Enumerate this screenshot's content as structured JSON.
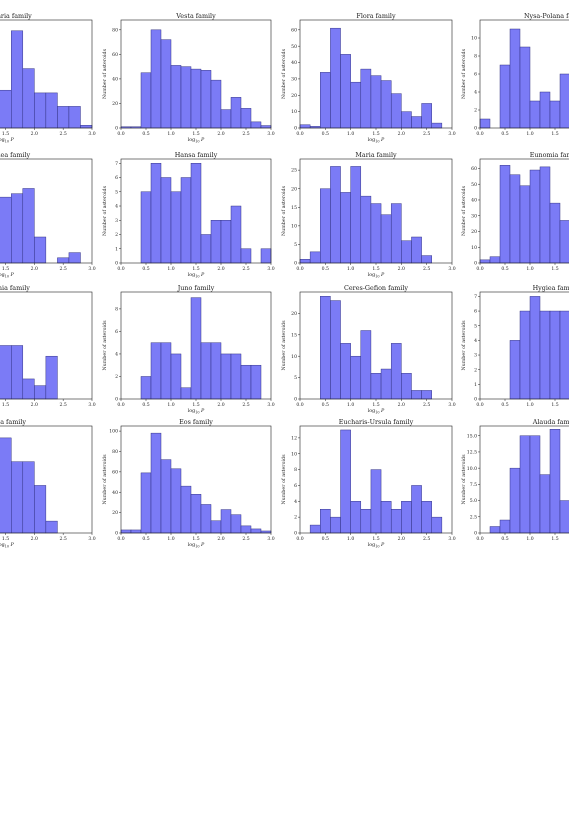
{
  "chart_data": [
    {
      "type": "bar",
      "title": "Hungaria family",
      "xlabel": "log10 P",
      "ylabel": "",
      "bin_edges": [
        0.0,
        0.2,
        0.4,
        0.6,
        0.8,
        1.0,
        1.2,
        1.4,
        1.6,
        1.8,
        2.0,
        2.2,
        2.4,
        2.6,
        2.8,
        3.0
      ],
      "values": [
        0,
        0,
        0,
        0,
        0,
        0,
        12,
        14,
        36,
        22,
        13,
        13,
        8,
        8,
        1
      ],
      "xlim": [
        0,
        3
      ],
      "ylim": [
        0,
        40
      ],
      "xticks": [
        "1.5",
        "2.0",
        "2.5",
        "3.0"
      ],
      "yticks": []
    },
    {
      "type": "bar",
      "title": "Vesta family",
      "xlabel": "log10 P",
      "ylabel": "Number of asteroids",
      "bin_edges": [
        0.0,
        0.2,
        0.4,
        0.6,
        0.8,
        1.0,
        1.2,
        1.4,
        1.6,
        1.8,
        2.0,
        2.2,
        2.4,
        2.6,
        2.8,
        3.0
      ],
      "values": [
        1,
        1,
        45,
        80,
        72,
        51,
        50,
        48,
        47,
        39,
        15,
        25,
        16,
        5,
        2
      ],
      "xlim": [
        0,
        3
      ],
      "ylim": [
        0,
        88
      ],
      "xticks": [
        "0.0",
        "0.5",
        "1.0",
        "1.5",
        "2.0",
        "2.5",
        "3.0"
      ],
      "yticks": [
        "0",
        "20",
        "40",
        "60",
        "80"
      ]
    },
    {
      "type": "bar",
      "title": "Flora family",
      "xlabel": "log10 P",
      "ylabel": "Number of asteroids",
      "bin_edges": [
        0.0,
        0.2,
        0.4,
        0.6,
        0.8,
        1.0,
        1.2,
        1.4,
        1.6,
        1.8,
        2.0,
        2.2,
        2.4,
        2.6,
        2.8,
        3.0
      ],
      "values": [
        2,
        1,
        34,
        61,
        45,
        28,
        36,
        32,
        29,
        21,
        10,
        7,
        15,
        3,
        0
      ],
      "xlim": [
        0,
        3
      ],
      "ylim": [
        0,
        66
      ],
      "xticks": [
        "0.0",
        "0.5",
        "1.0",
        "1.5",
        "2.0",
        "2.5",
        "3.0"
      ],
      "yticks": [
        "0",
        "10",
        "20",
        "30",
        "40",
        "50",
        "60"
      ]
    },
    {
      "type": "bar",
      "title": "Nysa-Polana family",
      "xlabel": "",
      "ylabel": "Number of asteroids",
      "bin_edges": [
        0.0,
        0.2,
        0.4,
        0.6,
        0.8,
        1.0,
        1.2,
        1.4,
        1.6,
        1.8,
        2.0,
        2.2,
        2.4,
        2.6,
        2.8,
        3.0
      ],
      "values": [
        1,
        0,
        7,
        11,
        9,
        3,
        4,
        3,
        6,
        0,
        0,
        0,
        0,
        0,
        0
      ],
      "xlim": [
        0,
        3
      ],
      "ylim": [
        0,
        12
      ],
      "xticks": [
        "0.0",
        "0.5",
        "1.0",
        "1.5"
      ],
      "yticks": [
        "0",
        "2",
        "4",
        "6",
        "8",
        "10"
      ]
    },
    {
      "type": "bar",
      "title": "Phocaea family",
      "xlabel": "log10 P",
      "ylabel": "",
      "bin_edges": [
        0.0,
        0.2,
        0.4,
        0.6,
        0.8,
        1.0,
        1.2,
        1.4,
        1.6,
        1.8,
        2.0,
        2.2,
        2.4,
        2.6,
        2.8,
        3.0
      ],
      "values": [
        0,
        0,
        0,
        0,
        0,
        3,
        4,
        3.8,
        4,
        4.3,
        1.5,
        0,
        0.3,
        0.6,
        0
      ],
      "xlim": [
        0,
        3
      ],
      "ylim": [
        0,
        6
      ],
      "xticks": [
        "1.5",
        "2.0",
        "2.5",
        "3.0"
      ],
      "yticks": []
    },
    {
      "type": "bar",
      "title": "Hansa family",
      "xlabel": "log10 P",
      "ylabel": "Number of asteroids",
      "bin_edges": [
        0.0,
        0.2,
        0.4,
        0.6,
        0.8,
        1.0,
        1.2,
        1.4,
        1.6,
        1.8,
        2.0,
        2.2,
        2.4,
        2.6,
        2.8,
        3.0
      ],
      "values": [
        0,
        0,
        5,
        7,
        6,
        5,
        6,
        7,
        2,
        3,
        3,
        4,
        1,
        0,
        1
      ],
      "xlim": [
        0,
        3
      ],
      "ylim": [
        0,
        7.3
      ],
      "xticks": [
        "0.0",
        "0.5",
        "1.0",
        "1.5",
        "2.0",
        "2.5",
        "3.0"
      ],
      "yticks": [
        "0",
        "1",
        "2",
        "3",
        "4",
        "5",
        "6",
        "7"
      ]
    },
    {
      "type": "bar",
      "title": "Maria family",
      "xlabel": "log10 P",
      "ylabel": "Number of asteroids",
      "bin_edges": [
        0.0,
        0.2,
        0.4,
        0.6,
        0.8,
        1.0,
        1.2,
        1.4,
        1.6,
        1.8,
        2.0,
        2.2,
        2.4,
        2.6,
        2.8,
        3.0
      ],
      "values": [
        1,
        3,
        20,
        26,
        19,
        26,
        18,
        16,
        13,
        16,
        6,
        7,
        2,
        0,
        0
      ],
      "xlim": [
        0,
        3
      ],
      "ylim": [
        0,
        28
      ],
      "xticks": [
        "0.0",
        "0.5",
        "1.0",
        "1.5",
        "2.0",
        "2.5",
        "3.0"
      ],
      "yticks": [
        "0",
        "5",
        "10",
        "15",
        "20",
        "25"
      ]
    },
    {
      "type": "bar",
      "title": "Eunomia family",
      "xlabel": "",
      "ylabel": "Number of asteroids",
      "bin_edges": [
        0.0,
        0.2,
        0.4,
        0.6,
        0.8,
        1.0,
        1.2,
        1.4,
        1.6,
        1.8,
        2.0,
        2.2,
        2.4,
        2.6,
        2.8,
        3.0
      ],
      "values": [
        2,
        4,
        62,
        56,
        49,
        59,
        61,
        38,
        27,
        0,
        0,
        0,
        0,
        0,
        0
      ],
      "xlim": [
        0,
        3
      ],
      "ylim": [
        0,
        66
      ],
      "xticks": [
        "0.0",
        "0.5",
        "1.0",
        "1.5"
      ],
      "yticks": [
        "0",
        "10",
        "20",
        "30",
        "40",
        "50",
        "60"
      ]
    },
    {
      "type": "bar",
      "title": "Gedenia family",
      "xlabel": "",
      "ylabel": "",
      "bin_edges": [
        0.0,
        0.2,
        0.4,
        0.6,
        0.8,
        1.0,
        1.2,
        1.4,
        1.6,
        1.8,
        2.0,
        2.2,
        2.4,
        2.6,
        2.8,
        3.0
      ],
      "values": [
        0,
        0,
        0,
        0,
        0,
        3,
        6.5,
        4,
        4,
        1.5,
        1,
        3.2,
        0,
        0,
        0
      ],
      "xlim": [
        0,
        3
      ],
      "ylim": [
        0,
        8
      ],
      "xticks": [
        "1.5",
        "2.0",
        "2.5",
        "3.0"
      ],
      "yticks": []
    },
    {
      "type": "bar",
      "title": "Juno family",
      "xlabel": "log10 P",
      "ylabel": "Number of asteroids",
      "bin_edges": [
        0.0,
        0.2,
        0.4,
        0.6,
        0.8,
        1.0,
        1.2,
        1.4,
        1.6,
        1.8,
        2.0,
        2.2,
        2.4,
        2.6,
        2.8,
        3.0
      ],
      "values": [
        0,
        0,
        2,
        5,
        5,
        4,
        1,
        9,
        5,
        5,
        4,
        4,
        3,
        3,
        0
      ],
      "xlim": [
        0,
        3
      ],
      "ylim": [
        0,
        9.5
      ],
      "xticks": [
        "0.0",
        "0.5",
        "1.0",
        "1.5",
        "2.0",
        "2.5",
        "3.0"
      ],
      "yticks": [
        "0",
        "2",
        "4",
        "6",
        "8"
      ]
    },
    {
      "type": "bar",
      "title": "Ceres-Gefion family",
      "xlabel": "log10 P",
      "ylabel": "Number of asteroids",
      "bin_edges": [
        0.0,
        0.2,
        0.4,
        0.6,
        0.8,
        1.0,
        1.2,
        1.4,
        1.6,
        1.8,
        2.0,
        2.2,
        2.4,
        2.6,
        2.8,
        3.0
      ],
      "values": [
        0,
        0,
        24,
        23,
        13,
        10,
        16,
        6,
        7,
        13,
        6,
        2,
        2,
        0,
        0
      ],
      "xlim": [
        0,
        3
      ],
      "ylim": [
        0,
        25
      ],
      "xticks": [
        "0.0",
        "0.5",
        "1.0",
        "1.5",
        "2.0",
        "2.5",
        "3.0"
      ],
      "yticks": [
        "0",
        "5",
        "10",
        "15",
        "20"
      ]
    },
    {
      "type": "bar",
      "title": "Hygiea family",
      "xlabel": "",
      "ylabel": "Number of asteroids",
      "bin_edges": [
        0.0,
        0.2,
        0.4,
        0.6,
        0.8,
        1.0,
        1.2,
        1.4,
        1.6,
        1.8,
        2.0,
        2.2,
        2.4,
        2.6,
        2.8,
        3.0
      ],
      "values": [
        0,
        0,
        0,
        4,
        6,
        7,
        6,
        6,
        6,
        3,
        0,
        0,
        0,
        0,
        0
      ],
      "xlim": [
        0,
        3
      ],
      "ylim": [
        0,
        7.3
      ],
      "xticks": [
        "0.0",
        "0.5",
        "1.0",
        "1.5"
      ],
      "yticks": [
        "0",
        "1",
        "2",
        "3",
        "4",
        "5",
        "6",
        "7"
      ]
    },
    {
      "type": "bar",
      "title": "Tirela family",
      "xlabel": "log10 P",
      "ylabel": "",
      "bin_edges": [
        0.0,
        0.2,
        0.4,
        0.6,
        0.8,
        1.0,
        1.2,
        1.4,
        1.6,
        1.8,
        2.0,
        2.2,
        2.4,
        2.6,
        2.8,
        3.0
      ],
      "values": [
        0,
        0,
        0,
        0,
        0,
        7,
        7.5,
        8,
        6,
        6,
        4,
        1,
        0,
        0,
        0
      ],
      "xlim": [
        0,
        3
      ],
      "ylim": [
        0,
        9
      ],
      "xticks": [
        "1.5",
        "2.0",
        "2.5",
        "3.0"
      ],
      "yticks": []
    },
    {
      "type": "bar",
      "title": "Eos family",
      "xlabel": "log10 P",
      "ylabel": "Number of asteroids",
      "bin_edges": [
        0.0,
        0.2,
        0.4,
        0.6,
        0.8,
        1.0,
        1.2,
        1.4,
        1.6,
        1.8,
        2.0,
        2.2,
        2.4,
        2.6,
        2.8,
        3.0
      ],
      "values": [
        3,
        3,
        59,
        98,
        72,
        63,
        46,
        38,
        28,
        12,
        23,
        18,
        7,
        4,
        2
      ],
      "xlim": [
        0,
        3
      ],
      "ylim": [
        0,
        105
      ],
      "xticks": [
        "0.0",
        "0.5",
        "1.0",
        "1.5",
        "2.0",
        "2.5",
        "3.0"
      ],
      "yticks": [
        "0",
        "20",
        "40",
        "60",
        "80",
        "100"
      ]
    },
    {
      "type": "bar",
      "title": "Eucharis-Ursula family",
      "xlabel": "log10 P",
      "ylabel": "Number of asteroids",
      "bin_edges": [
        0.0,
        0.2,
        0.4,
        0.6,
        0.8,
        1.0,
        1.2,
        1.4,
        1.6,
        1.8,
        2.0,
        2.2,
        2.4,
        2.6,
        2.8,
        3.0
      ],
      "values": [
        0,
        1,
        3,
        2,
        13,
        4,
        3,
        8,
        4,
        3,
        4,
        6,
        4,
        2,
        0
      ],
      "xlim": [
        0,
        3
      ],
      "ylim": [
        0,
        13.5
      ],
      "xticks": [
        "0.0",
        "0.5",
        "1.0",
        "1.5",
        "2.0",
        "2.5",
        "3.0"
      ],
      "yticks": [
        "0",
        "2",
        "4",
        "6",
        "8",
        "10",
        "12"
      ]
    },
    {
      "type": "bar",
      "title": "Alauda family",
      "xlabel": "",
      "ylabel": "Number of asteroids",
      "bin_edges": [
        0.0,
        0.2,
        0.4,
        0.6,
        0.8,
        1.0,
        1.2,
        1.4,
        1.6,
        1.8,
        2.0,
        2.2,
        2.4,
        2.6,
        2.8,
        3.0
      ],
      "values": [
        0,
        1,
        2,
        10,
        15,
        15,
        9,
        16,
        5,
        0,
        0,
        0,
        0,
        0,
        0
      ],
      "xlim": [
        0,
        3
      ],
      "ylim": [
        0,
        16.5
      ],
      "xticks": [
        "0.0",
        "0.5",
        "1.0",
        "1.5"
      ],
      "yticks": [
        "0",
        "2.5",
        "5.0",
        "7.5",
        "10.0",
        "12.5",
        "15.0"
      ]
    }
  ]
}
